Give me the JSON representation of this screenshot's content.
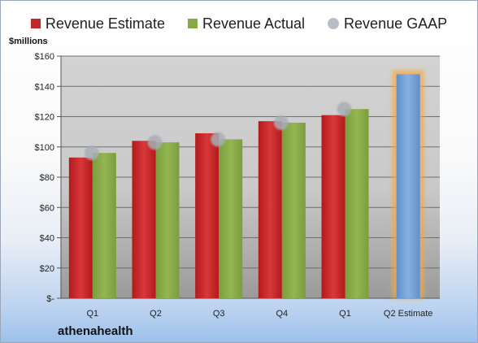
{
  "brand": "athenahealth",
  "chart_data": {
    "type": "bar",
    "ylabel": "$millions",
    "ylim": [
      0,
      160
    ],
    "yticks": [
      "$-",
      "$20",
      "$40",
      "$60",
      "$80",
      "$100",
      "$120",
      "$140",
      "$160"
    ],
    "categories": [
      "Q1",
      "Q2",
      "Q3",
      "Q4",
      "Q1",
      "Q2 Estimate"
    ],
    "series": [
      {
        "name": "Revenue Estimate",
        "color": "#c0282a",
        "values": [
          93,
          104,
          109,
          117,
          121,
          null
        ]
      },
      {
        "name": "Revenue Actual",
        "color": "#86a845",
        "values": [
          96,
          103,
          105,
          116,
          125,
          148
        ]
      },
      {
        "name": "Revenue GAAP",
        "color": "#b9bec6",
        "values": [
          96,
          103,
          105,
          116,
          125,
          null
        ]
      }
    ],
    "highlight_bar": {
      "category": "Q2 Estimate",
      "color": "#6f9fd8",
      "glow": "#f4a940"
    },
    "grid": true,
    "legend_position": "top"
  }
}
